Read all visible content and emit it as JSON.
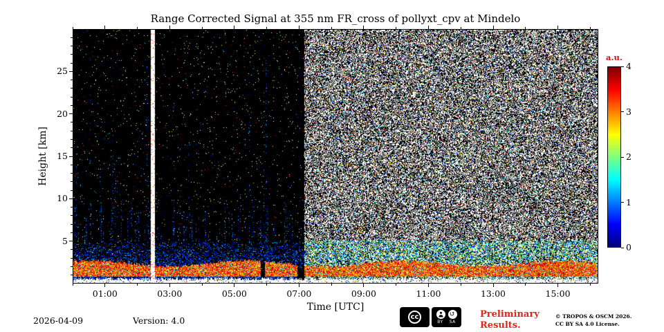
{
  "chart_data": {
    "type": "heatmap",
    "title": "Range Corrected Signal at 355 nm FR_cross of pollyxt_cpv at Mindelo",
    "xlabel": "Time [UTC]",
    "ylabel": "Height [km]",
    "x_tick_hours": [
      1,
      3,
      5,
      7,
      9,
      11,
      13,
      15
    ],
    "x_tick_labels": [
      "01:00",
      "03:00",
      "05:00",
      "07:00",
      "09:00",
      "11:00",
      "13:00",
      "15:00"
    ],
    "x_range_hours": [
      0,
      16.25
    ],
    "y_tick_km": [
      5,
      10,
      15,
      20,
      25
    ],
    "y_tick_labels": [
      "5",
      "10",
      "15",
      "20",
      "25"
    ],
    "y_range_km": [
      0,
      30
    ],
    "colorbar": {
      "label": "a.u.",
      "label_color": "#cc1111",
      "tick_values": [
        0,
        1,
        2,
        3,
        4
      ],
      "tick_labels": [
        "0",
        "1",
        "2",
        "3",
        "4"
      ],
      "min": 0,
      "max": 4,
      "colormap": "jet"
    },
    "noise_seed": 42,
    "transition_hour": 7.15,
    "white_column_hours": [
      2.4,
      2.51
    ],
    "gaps": [
      [
        5.8,
        5.93
      ],
      [
        6.94,
        7.15
      ]
    ],
    "boundary_layer": {
      "top_km": 2.3,
      "bottom_km": 0.72,
      "signal_au": [
        2.5,
        4.0
      ]
    },
    "regions": [
      {
        "name": "night-clear-sky",
        "time_h": [
          0,
          7.15
        ],
        "height_km": [
          5,
          30
        ],
        "signal_au": 0,
        "appearance": "black background with sparse speckle noise and faint vertical noise streaks"
      },
      {
        "name": "daylight-background-noise",
        "time_h": [
          7.15,
          16.25
        ],
        "height_km": [
          5,
          30
        ],
        "appearance": "dense white/black salt-and-pepper noise with scattered colored specks"
      },
      {
        "name": "marine-boundary-layer-aerosol",
        "time_h": [
          0,
          16.25
        ],
        "height_km": [
          0.72,
          2.3
        ],
        "signal_au": [
          2.5,
          4.0
        ],
        "appearance": "strong continuous red/orange layer"
      },
      {
        "name": "low-level-scatter",
        "time_h": [
          0,
          7.15
        ],
        "height_km": [
          2.3,
          5
        ],
        "signal_au": [
          0.3,
          1.5
        ],
        "appearance": "blue/cyan noise fading with height"
      },
      {
        "name": "near-ground-saturation",
        "time_h": [
          0,
          16.25
        ],
        "height_km": [
          0,
          0.4
        ],
        "appearance": "white saturated jagged band"
      },
      {
        "name": "no-data-column",
        "time_h": [
          2.4,
          2.51
        ],
        "height_km": [
          0,
          30
        ],
        "appearance": "white vertical stripe"
      }
    ]
  },
  "footer": {
    "date": "2026-04-09",
    "version": "Version: 4.0",
    "preliminary_line1": "Preliminary",
    "preliminary_line2": "Results.",
    "preliminary_color": "#e8201a",
    "copyright_line1": "© TROPOS & OSCM 2026.",
    "copyright_line2": "CC BY SA 4.0 License.",
    "badge": {
      "cc": "cc",
      "by": "BY",
      "sa": "SA"
    }
  }
}
